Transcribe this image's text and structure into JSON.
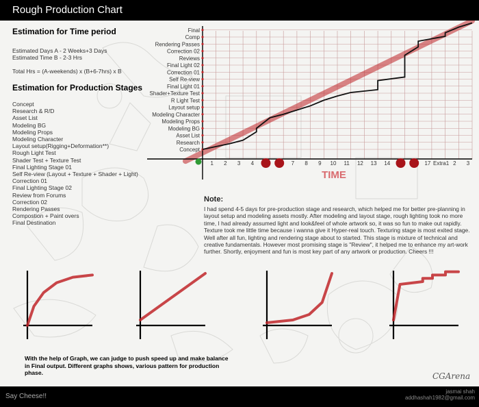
{
  "header": {
    "title": "Rough Production Chart"
  },
  "footer": {
    "left": "Say Cheese!!",
    "author": "jasmai shah",
    "email": "addhashah1982@gmail.com"
  },
  "time_period": {
    "heading": "Estimation for Time period",
    "line1": "Estimated Days A - 2 Weeks+3 Days",
    "line2": "Estimated Time B - 2-3 Hrs",
    "line3": "Total Hrs = (A-weekends) x (B+6-7hrs) x B"
  },
  "stages": {
    "heading": "Estimation for Production Stages",
    "items": [
      "Concept",
      "Research & R/D",
      "Asset List",
      "Modeling BG",
      "Modeling Props",
      "Modeling Character",
      "Layout setup(Rigging+Deformation**)",
      "Rough Light Test",
      "Shader Test + Texture Test",
      "Final Lighting Stage 01",
      "Self Re-view (Layout + Texture + Shader + Light)",
      "Correction 01",
      "Final Lighting Stage 02",
      "Review from Forums",
      "Correction 02",
      "Rendering Passes",
      "Compostion + Paint overs",
      "Final Destination"
    ]
  },
  "note": {
    "title": "Note:",
    "text": "I had spend 4-5 days for pre-production stage and research, which helped me for better pre-planning in layout setup and modeling assets mostly. After modeling and layout stage, rough lighting took no more time, I had already assumed light and look&feel of whole artwork so, it was so fun to make out rapidly. Texture took me little time because i wanna give it Hyper-real touch. Texturing stage is most exited stage. Well after all fun, lighting and rendering stage about to started. This stage is mixture of technical and creative fundamentals. However most promising stage is \"Review\", it helped me to enhance my art-work further. Shortly, enjoyment and fun is most key part of any artwork or production. Cheers !!!"
  },
  "caption": "With the help of Graph, we can judge to push speed up and make balance in Final output. Different graphs shows, various pattern for production phase.",
  "brand": "CGArena",
  "colors": {
    "accent_red": "#c0262a",
    "line": "#111111",
    "grid": "#c79a9a"
  },
  "chart_data": {
    "type": "line",
    "xlabel": "TIME",
    "ylabel": "",
    "x_tick_labels": [
      "1",
      "2",
      "3",
      "4",
      "5",
      "6",
      "7",
      "8",
      "9",
      "10",
      "11",
      "12",
      "13",
      "14",
      "15",
      "16",
      "17",
      "Extra1",
      "2",
      "3"
    ],
    "y_categories": [
      "Concept",
      "Research",
      "Asset List",
      "Modeling BG",
      "Modeling Props",
      "Modeling Character",
      "Layout setup",
      "R Light Test",
      "Shader+Texture Test",
      "Final Light 01",
      "Self Re-view",
      "Correction 01",
      "Final Light 02",
      "Reviews",
      "Correction 02",
      "Rendering Passes",
      "Comp",
      "Final"
    ],
    "series": [
      {
        "name": "",
        "points": [
          [
            0,
            0
          ],
          [
            1,
            0.4
          ],
          [
            2,
            0.8
          ],
          [
            3,
            1.3
          ],
          [
            4,
            2.5
          ],
          [
            4,
            3.0
          ],
          [
            5,
            4.5
          ],
          [
            6,
            5.0
          ],
          [
            7,
            5.6
          ],
          [
            8,
            6.2
          ],
          [
            9,
            7.0
          ],
          [
            10,
            7.6
          ],
          [
            11,
            8.1
          ],
          [
            13,
            8.5
          ],
          [
            13,
            9.8
          ],
          [
            15,
            10.3
          ],
          [
            15,
            13.4
          ],
          [
            16,
            14.6
          ],
          [
            16,
            15.4
          ],
          [
            18,
            16.1
          ],
          [
            18,
            16.6
          ],
          [
            19,
            17.4
          ],
          [
            20,
            18.0
          ]
        ]
      }
    ],
    "trend": {
      "points": [
        [
          0,
          -0.5
        ],
        [
          20,
          18.3
        ]
      ]
    },
    "start_marker": {
      "x": 0,
      "y": 0
    },
    "highlighted_days": [
      5,
      6,
      15,
      16
    ],
    "mini_graphs": [
      {
        "name": "",
        "type": "curve",
        "points": [
          [
            0,
            0
          ],
          [
            0.1,
            0.35
          ],
          [
            0.25,
            0.6
          ],
          [
            0.45,
            0.78
          ],
          [
            0.7,
            0.88
          ],
          [
            1,
            0.92
          ]
        ]
      },
      {
        "name": "",
        "type": "linear",
        "points": [
          [
            0,
            0.1
          ],
          [
            1,
            0.95
          ]
        ]
      },
      {
        "name": "",
        "type": "exponential",
        "points": [
          [
            0,
            0.05
          ],
          [
            0.4,
            0.1
          ],
          [
            0.65,
            0.2
          ],
          [
            0.85,
            0.42
          ],
          [
            1,
            0.95
          ]
        ]
      },
      {
        "name": "",
        "type": "step",
        "points": [
          [
            0,
            0.1
          ],
          [
            0.1,
            0.75
          ],
          [
            0.45,
            0.8
          ],
          [
            0.45,
            0.86
          ],
          [
            0.6,
            0.86
          ],
          [
            0.6,
            0.92
          ],
          [
            0.8,
            0.92
          ],
          [
            0.8,
            0.98
          ],
          [
            1,
            0.98
          ]
        ]
      }
    ]
  }
}
